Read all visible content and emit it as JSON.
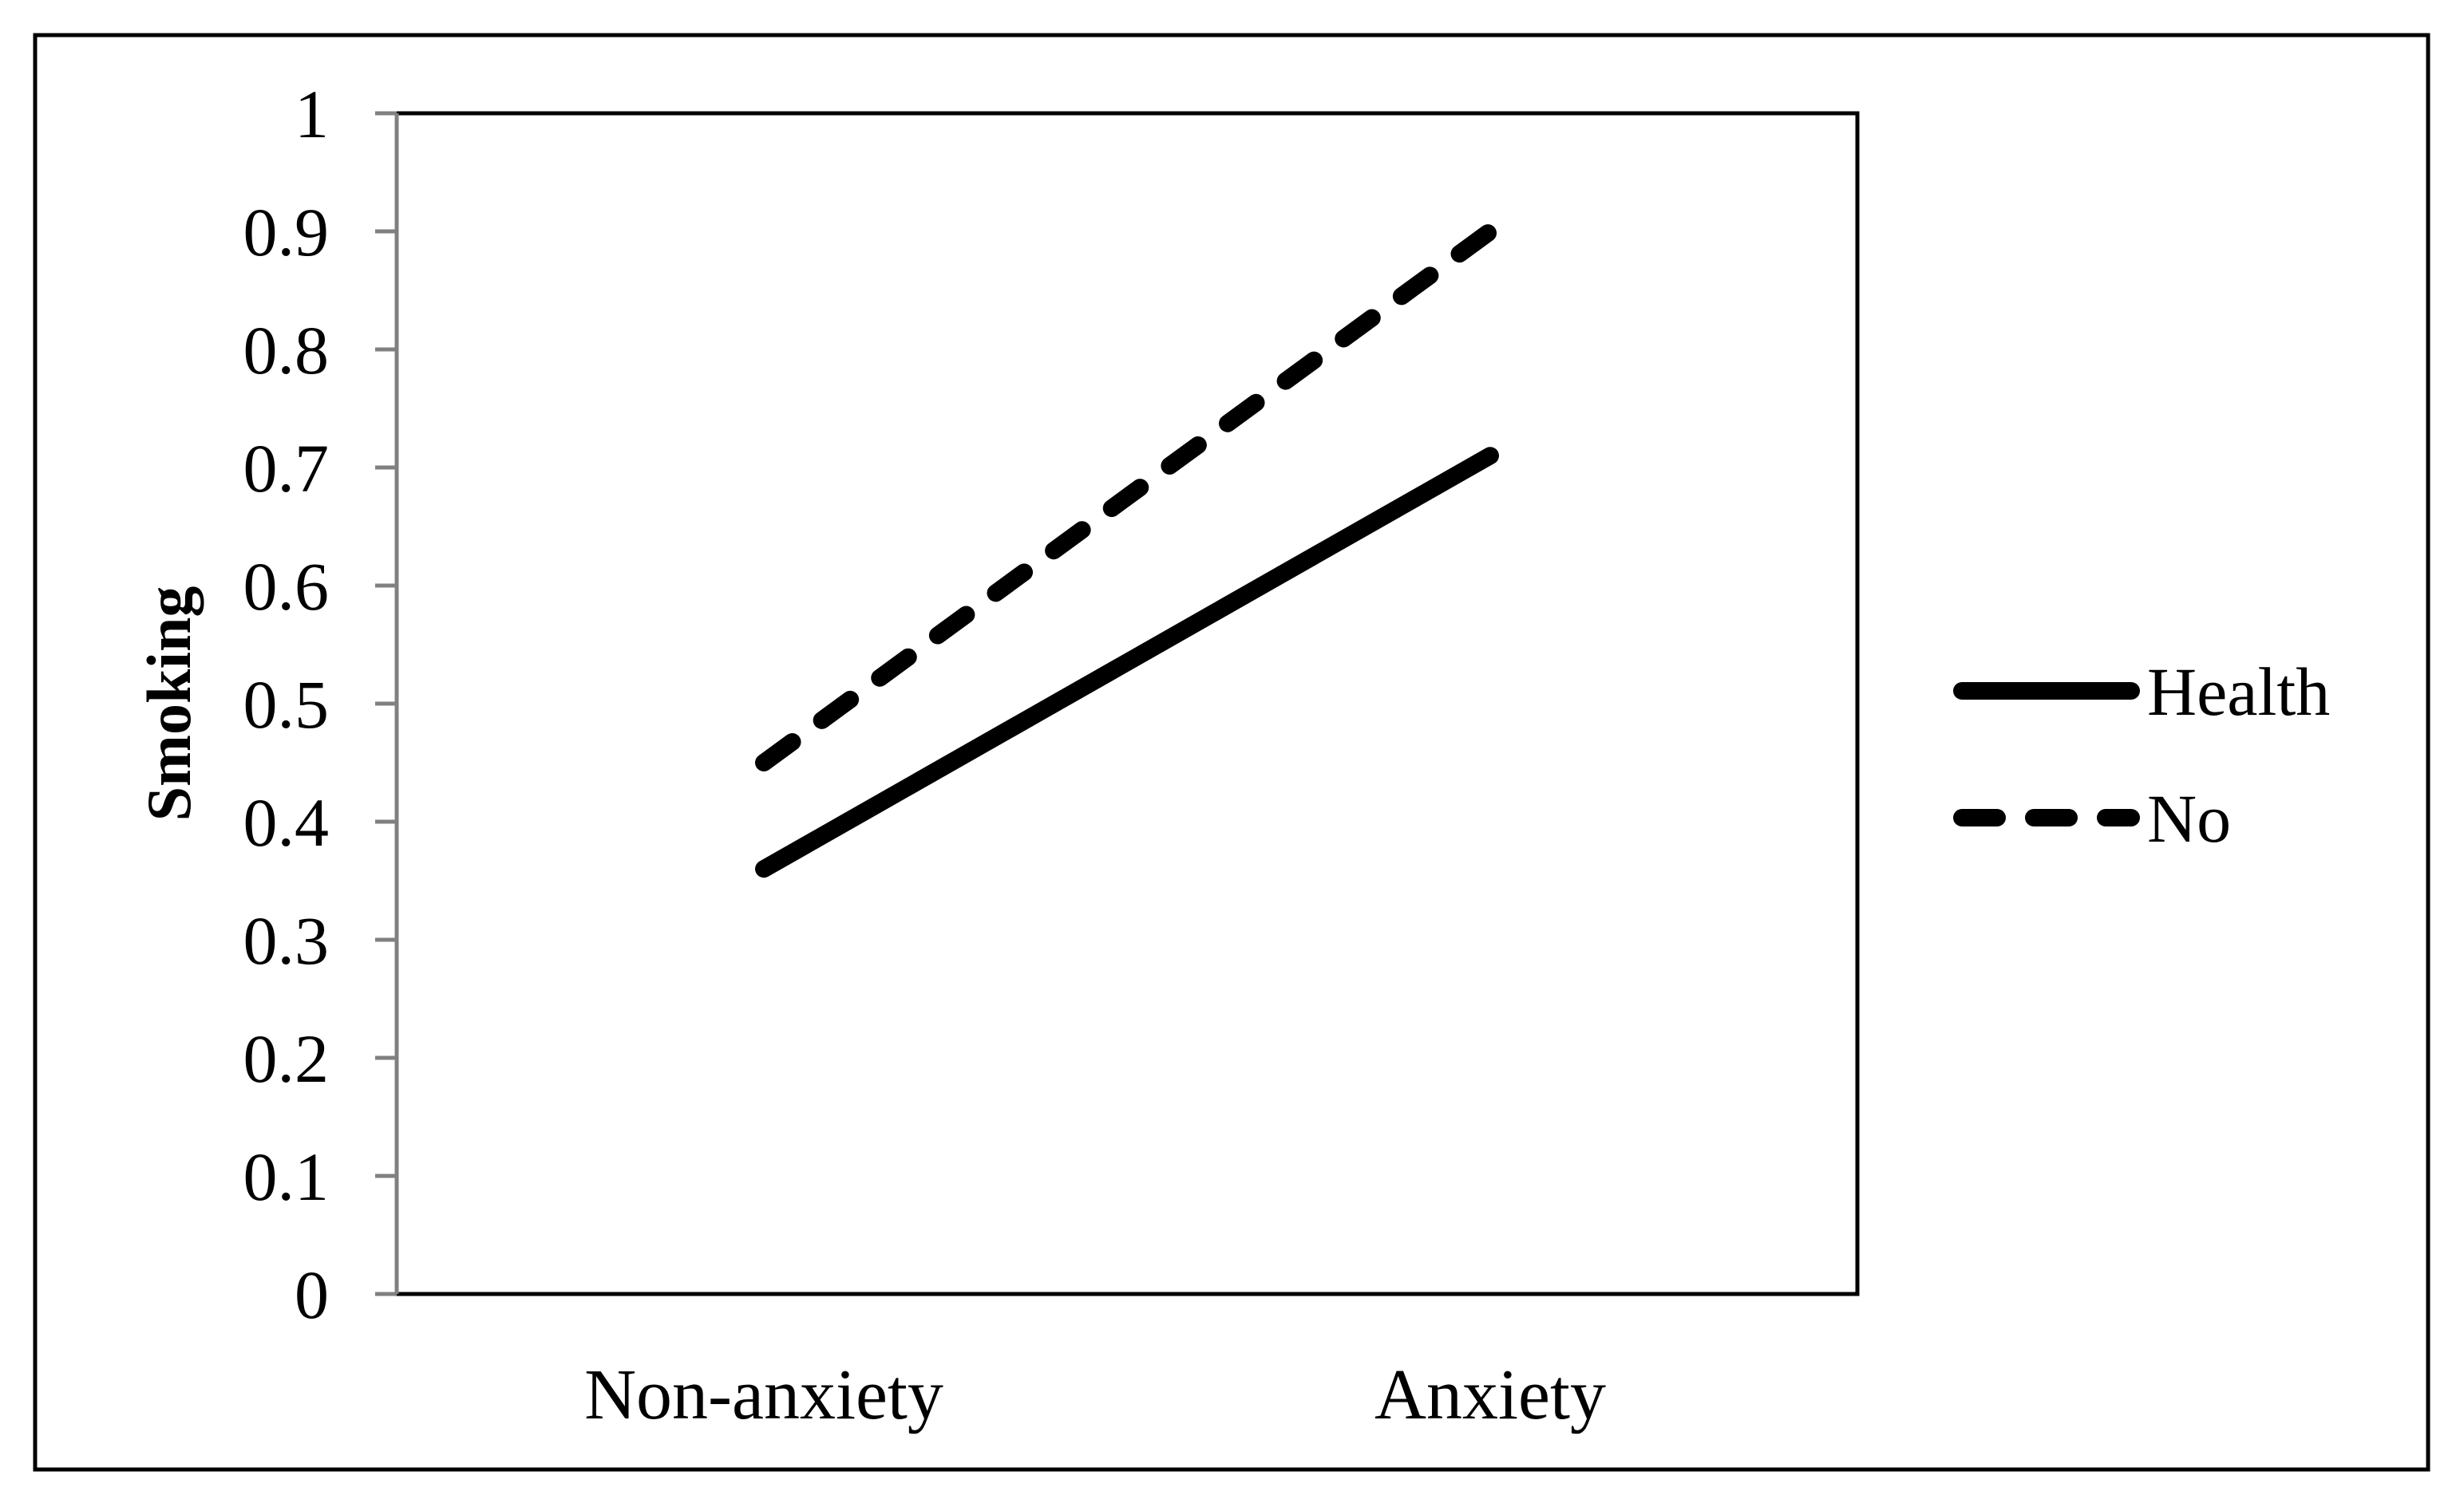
{
  "chart_data": {
    "type": "line",
    "title": "",
    "xlabel": "",
    "ylabel": "Smoking",
    "categories": [
      "Non-anxiety",
      "Anxiety"
    ],
    "ylim": [
      0,
      1
    ],
    "yticks": [
      "0",
      "0.1",
      "0.2",
      "0.3",
      "0.4",
      "0.5",
      "0.6",
      "0.7",
      "0.8",
      "0.9",
      "1"
    ],
    "grid": false,
    "legend_position": "right",
    "series": [
      {
        "name": "Health",
        "values": [
          0.36,
          0.71
        ],
        "line_style": "solid",
        "color": "#000000"
      },
      {
        "name": "No",
        "values": [
          0.45,
          0.9
        ],
        "line_style": "dashed",
        "color": "#000000"
      }
    ]
  }
}
